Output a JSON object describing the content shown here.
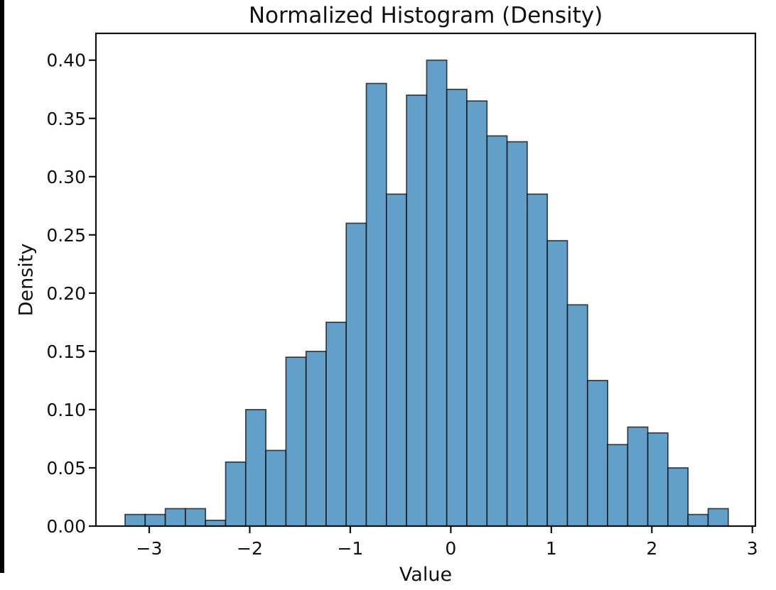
{
  "figure": {
    "title": "Normalized Histogram (Density)",
    "x_axis_label": "Value",
    "y_axis_label": "Density"
  },
  "chart_data": {
    "type": "bar",
    "subtype": "histogram-density",
    "title": "Normalized Histogram (Density)",
    "xlabel": "Value",
    "ylabel": "Density",
    "grid": false,
    "legend": false,
    "xlim": [
      -3.53,
      3.03
    ],
    "ylim": [
      0,
      0.423
    ],
    "bin_width": 0.2,
    "bin_edges": [
      -3.24,
      -3.04,
      -2.84,
      -2.64,
      -2.44,
      -2.24,
      -2.04,
      -1.84,
      -1.64,
      -1.44,
      -1.24,
      -1.04,
      -0.84,
      -0.64,
      -0.44,
      -0.24,
      -0.04,
      0.16,
      0.36,
      0.56,
      0.76,
      0.96,
      1.16,
      1.36,
      1.56,
      1.76,
      1.96,
      2.16,
      2.36,
      2.56,
      2.76
    ],
    "densities": [
      0.01,
      0.01,
      0.015,
      0.015,
      0.005,
      0.055,
      0.1,
      0.065,
      0.145,
      0.15,
      0.175,
      0.26,
      0.38,
      0.285,
      0.37,
      0.4,
      0.375,
      0.365,
      0.335,
      0.33,
      0.285,
      0.245,
      0.19,
      0.125,
      0.07,
      0.085,
      0.08,
      0.05,
      0.01,
      0.015
    ],
    "x_ticks": [
      {
        "value": -3,
        "label": "−3"
      },
      {
        "value": -2,
        "label": "−2"
      },
      {
        "value": -1,
        "label": "−1"
      },
      {
        "value": 0,
        "label": "0"
      },
      {
        "value": 1,
        "label": "1"
      },
      {
        "value": 2,
        "label": "2"
      },
      {
        "value": 3,
        "label": "3"
      }
    ],
    "y_ticks": [
      {
        "value": 0.0,
        "label": "0.00"
      },
      {
        "value": 0.05,
        "label": "0.05"
      },
      {
        "value": 0.1,
        "label": "0.10"
      },
      {
        "value": 0.15,
        "label": "0.15"
      },
      {
        "value": 0.2,
        "label": "0.20"
      },
      {
        "value": 0.25,
        "label": "0.25"
      },
      {
        "value": 0.3,
        "label": "0.30"
      },
      {
        "value": 0.35,
        "label": "0.35"
      },
      {
        "value": 0.4,
        "label": "0.40"
      }
    ],
    "colors": {
      "bar_fill": "#62a0ca",
      "bar_edge": "#000000",
      "bar_edge_opacity": 0.7,
      "axis": "#111111",
      "text": "#111111",
      "background": "#ffffff",
      "left_edge_strip": "#000000"
    }
  }
}
